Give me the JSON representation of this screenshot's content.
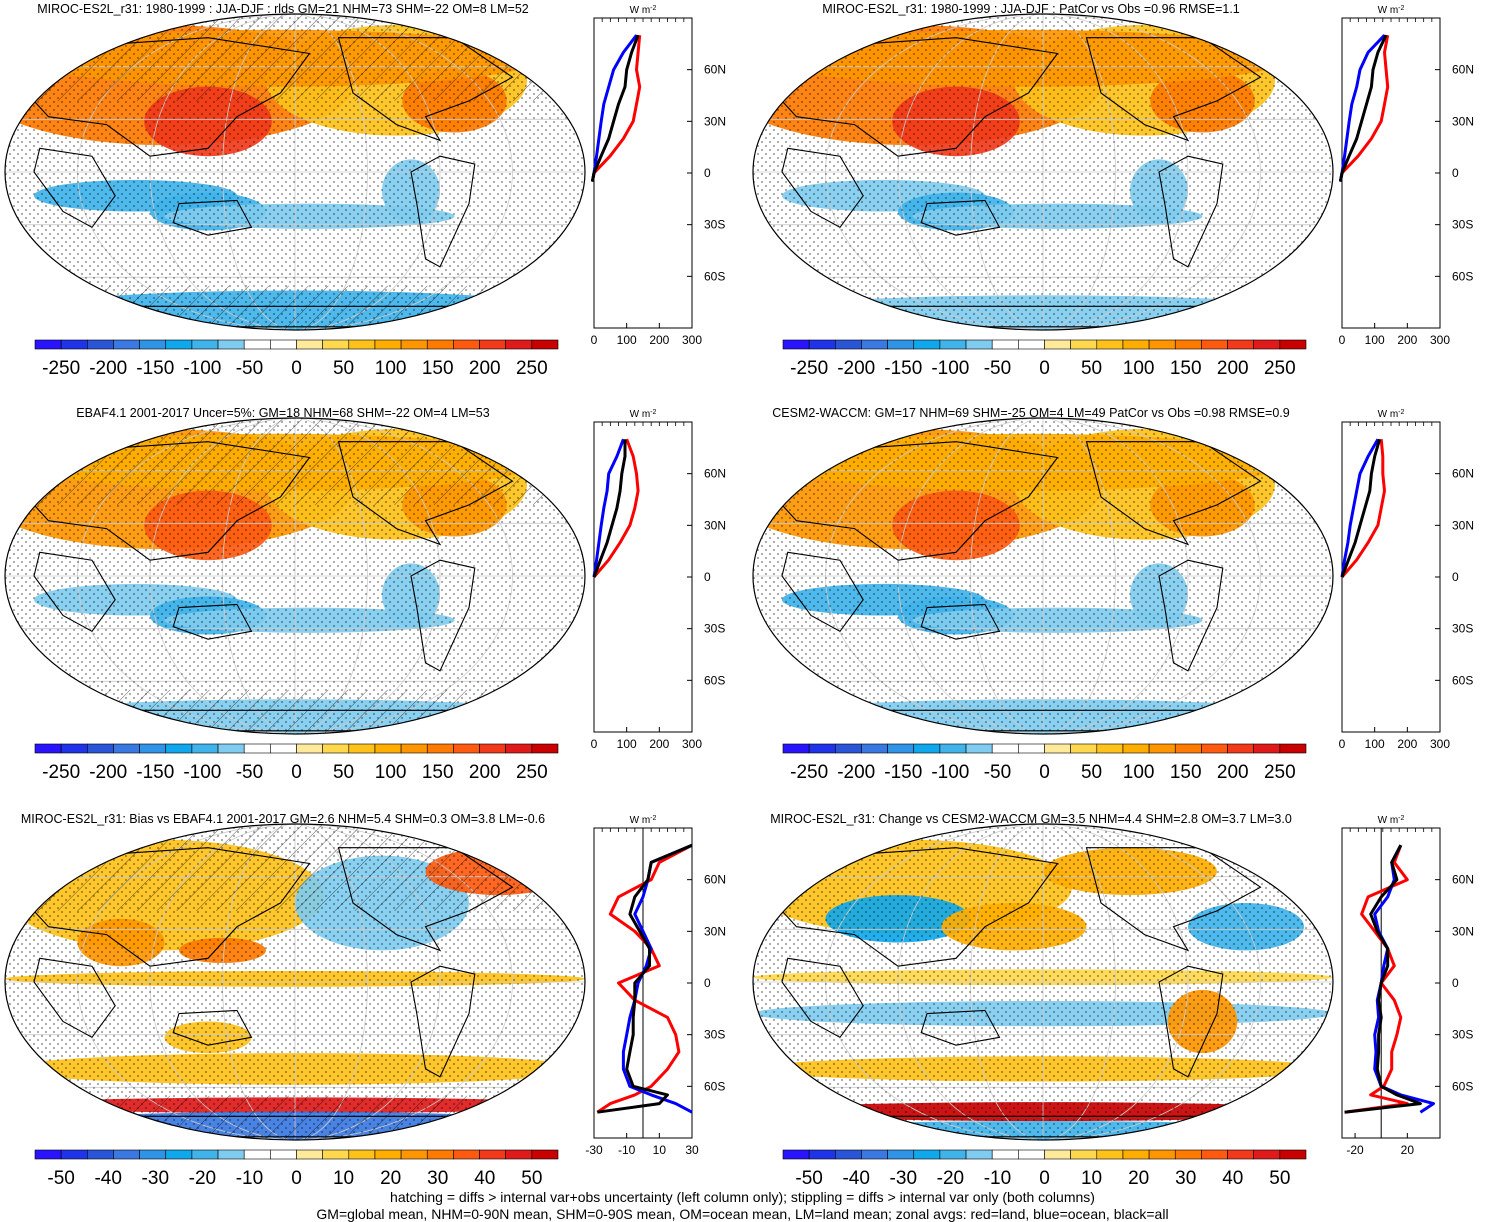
{
  "colors": {
    "scale": [
      "#2a14ff",
      "#1f33e8",
      "#2a55d6",
      "#3a78e2",
      "#2f93e6",
      "#10a8ec",
      "#3fb3ea",
      "#7fccf0",
      "#ffffff",
      "#ffffff",
      "#ffe99a",
      "#ffd84e",
      "#ffc21a",
      "#ffae00",
      "#ff9600",
      "#ff7a00",
      "#ff5a10",
      "#f23a1a",
      "#e01a1a",
      "#c80000"
    ],
    "land_line": "#ff0000",
    "ocean_line": "#0000ff",
    "all_line": "#000000"
  },
  "chart_data": [
    {
      "id": "p1",
      "type": "heatmap",
      "title": "MIROC-ES2L_r31: 1980-1999 : JJA-DJF : rlds GM=21 NHM=73 SHM=-22 OM=8 LM=52",
      "colorbar": {
        "ticks": [
          "-250",
          "-200",
          "-150",
          "-100",
          "-50",
          "0",
          "50",
          "100",
          "150",
          "200",
          "250"
        ],
        "range": [
          -275,
          275
        ]
      },
      "zonal": {
        "unit_main": "W m",
        "unit_sup": "-2",
        "xticks": [
          "0",
          "100",
          "200",
          "300"
        ],
        "xlim": [
          0,
          300
        ],
        "yticks": [
          "60N",
          "30N",
          "0",
          "30S",
          "60S"
        ],
        "ylim": [
          -90,
          90
        ],
        "zero_line": false,
        "lat": [
          80,
          70,
          60,
          50,
          40,
          30,
          20,
          10,
          0,
          -5
        ],
        "land": [
          140,
          135,
          130,
          140,
          130,
          120,
          90,
          50,
          0,
          -5
        ],
        "ocean": [
          130,
          90,
          60,
          45,
          30,
          22,
          15,
          8,
          0,
          -5
        ],
        "all": [
          135,
          115,
          100,
          95,
          75,
          60,
          45,
          22,
          0,
          -5
        ]
      },
      "map": {
        "blobs": [
          {
            "cx": -0.45,
            "cy": 0.55,
            "rx": 0.65,
            "ry": 0.38,
            "v": 150
          },
          {
            "cx": -0.3,
            "cy": 0.32,
            "rx": 0.22,
            "ry": 0.22,
            "v": 200
          },
          {
            "cx": 0.35,
            "cy": 0.58,
            "rx": 0.45,
            "ry": 0.35,
            "v": 80
          },
          {
            "cx": 0.55,
            "cy": 0.45,
            "rx": 0.18,
            "ry": 0.2,
            "v": 140
          },
          {
            "cx": -0.05,
            "cy": 0.72,
            "rx": 0.9,
            "ry": 0.18,
            "v": 110
          },
          {
            "cx": -0.55,
            "cy": -0.15,
            "rx": 0.35,
            "ry": 0.1,
            "v": -90
          },
          {
            "cx": -0.3,
            "cy": -0.25,
            "rx": 0.2,
            "ry": 0.12,
            "v": -100
          },
          {
            "cx": 0.05,
            "cy": -0.28,
            "rx": 0.5,
            "ry": 0.08,
            "v": -70
          },
          {
            "cx": 0.4,
            "cy": -0.12,
            "rx": 0.1,
            "ry": 0.2,
            "v": -70
          },
          {
            "cx": 0.0,
            "cy": -0.9,
            "rx": 1.0,
            "ry": 0.15,
            "v": -90
          }
        ]
      }
    },
    {
      "id": "p2",
      "type": "heatmap",
      "title": "MIROC-ES2L_r31: 1980-1999 : JJA-DJF : PatCor vs Obs =0.96 RMSE=1.1",
      "colorbar": {
        "ticks": [
          "-250",
          "-200",
          "-150",
          "-100",
          "-50",
          "0",
          "50",
          "100",
          "150",
          "200",
          "250"
        ],
        "range": [
          -275,
          275
        ]
      },
      "zonal": {
        "unit_main": "W m",
        "unit_sup": "-2",
        "xticks": [
          "0",
          "100",
          "200",
          "300"
        ],
        "xlim": [
          0,
          300
        ],
        "yticks": [
          "60N",
          "30N",
          "0",
          "30S",
          "60S"
        ],
        "ylim": [
          -90,
          90
        ],
        "zero_line": false,
        "lat": [
          80,
          70,
          60,
          50,
          40,
          30,
          20,
          10,
          0,
          -5
        ],
        "land": [
          140,
          130,
          135,
          140,
          130,
          120,
          90,
          50,
          0,
          -5
        ],
        "ocean": [
          130,
          80,
          55,
          45,
          30,
          22,
          15,
          8,
          0,
          -5
        ],
        "all": [
          135,
          110,
          95,
          90,
          75,
          60,
          45,
          22,
          0,
          -5
        ]
      },
      "map": {
        "blobs": [
          {
            "cx": -0.45,
            "cy": 0.55,
            "rx": 0.65,
            "ry": 0.38,
            "v": 150
          },
          {
            "cx": -0.3,
            "cy": 0.32,
            "rx": 0.22,
            "ry": 0.22,
            "v": 200
          },
          {
            "cx": 0.35,
            "cy": 0.58,
            "rx": 0.45,
            "ry": 0.35,
            "v": 80
          },
          {
            "cx": 0.55,
            "cy": 0.45,
            "rx": 0.18,
            "ry": 0.2,
            "v": 140
          },
          {
            "cx": -0.05,
            "cy": 0.72,
            "rx": 0.9,
            "ry": 0.18,
            "v": 110
          },
          {
            "cx": -0.55,
            "cy": -0.15,
            "rx": 0.35,
            "ry": 0.1,
            "v": -80
          },
          {
            "cx": -0.3,
            "cy": -0.25,
            "rx": 0.2,
            "ry": 0.12,
            "v": -90
          },
          {
            "cx": 0.05,
            "cy": -0.28,
            "rx": 0.5,
            "ry": 0.08,
            "v": -70
          },
          {
            "cx": 0.4,
            "cy": -0.12,
            "rx": 0.1,
            "ry": 0.2,
            "v": -70
          },
          {
            "cx": 0.0,
            "cy": -0.9,
            "rx": 1.0,
            "ry": 0.12,
            "v": -80
          }
        ]
      }
    },
    {
      "id": "p3",
      "type": "heatmap",
      "title": "EBAF4.1 2001-2017 Uncer=5%: GM=18 NHM=68 SHM=-22 OM=4 LM=53",
      "colorbar": {
        "ticks": [
          "-250",
          "-200",
          "-150",
          "-100",
          "-50",
          "0",
          "50",
          "100",
          "150",
          "200",
          "250"
        ],
        "range": [
          -275,
          275
        ]
      },
      "zonal": {
        "unit_main": "W m",
        "unit_sup": "-2",
        "xticks": [
          "0",
          "100",
          "200",
          "300"
        ],
        "xlim": [
          0,
          300
        ],
        "yticks": [
          "60N",
          "30N",
          "0",
          "30S",
          "60S"
        ],
        "ylim": [
          -90,
          90
        ],
        "zero_line": false,
        "lat": [
          80,
          70,
          60,
          50,
          40,
          30,
          20,
          10,
          0
        ],
        "land": [
          100,
          120,
          130,
          135,
          125,
          110,
          80,
          45,
          0
        ],
        "ocean": [
          90,
          70,
          45,
          40,
          30,
          22,
          15,
          8,
          0
        ],
        "all": [
          95,
          95,
          85,
          80,
          70,
          55,
          40,
          20,
          0
        ]
      },
      "map": {
        "blobs": [
          {
            "cx": -0.45,
            "cy": 0.55,
            "rx": 0.65,
            "ry": 0.38,
            "v": 130
          },
          {
            "cx": -0.3,
            "cy": 0.32,
            "rx": 0.22,
            "ry": 0.22,
            "v": 180
          },
          {
            "cx": 0.35,
            "cy": 0.58,
            "rx": 0.45,
            "ry": 0.35,
            "v": 80
          },
          {
            "cx": 0.55,
            "cy": 0.45,
            "rx": 0.18,
            "ry": 0.2,
            "v": 130
          },
          {
            "cx": -0.05,
            "cy": 0.72,
            "rx": 0.9,
            "ry": 0.18,
            "v": 100
          },
          {
            "cx": -0.55,
            "cy": -0.15,
            "rx": 0.35,
            "ry": 0.1,
            "v": -80
          },
          {
            "cx": -0.3,
            "cy": -0.25,
            "rx": 0.2,
            "ry": 0.12,
            "v": -100
          },
          {
            "cx": 0.05,
            "cy": -0.28,
            "rx": 0.5,
            "ry": 0.08,
            "v": -70
          },
          {
            "cx": 0.4,
            "cy": -0.12,
            "rx": 0.1,
            "ry": 0.2,
            "v": -70
          },
          {
            "cx": 0.0,
            "cy": -0.9,
            "rx": 1.0,
            "ry": 0.12,
            "v": -80
          }
        ]
      }
    },
    {
      "id": "p4",
      "type": "heatmap",
      "title": "CESM2-WACCM: GM=17 NHM=69 SHM=-25 OM=4 LM=49 PatCor vs Obs =0.98 RMSE=0.9",
      "colorbar": {
        "ticks": [
          "-250",
          "-200",
          "-150",
          "-100",
          "-50",
          "0",
          "50",
          "100",
          "150",
          "200",
          "250"
        ],
        "range": [
          -275,
          275
        ]
      },
      "zonal": {
        "unit_main": "W m",
        "unit_sup": "-2",
        "xticks": [
          "0",
          "100",
          "200",
          "300"
        ],
        "xlim": [
          0,
          300
        ],
        "yticks": [
          "60N",
          "30N",
          "0",
          "30S",
          "60S"
        ],
        "ylim": [
          -90,
          90
        ],
        "zero_line": false,
        "lat": [
          80,
          70,
          60,
          50,
          40,
          30,
          20,
          10,
          0
        ],
        "land": [
          120,
          125,
          125,
          130,
          120,
          110,
          80,
          45,
          0
        ],
        "ocean": [
          110,
          80,
          55,
          45,
          35,
          25,
          18,
          8,
          0
        ],
        "all": [
          115,
          100,
          90,
          85,
          70,
          55,
          40,
          20,
          0
        ]
      },
      "map": {
        "blobs": [
          {
            "cx": -0.45,
            "cy": 0.55,
            "rx": 0.65,
            "ry": 0.38,
            "v": 130
          },
          {
            "cx": -0.3,
            "cy": 0.32,
            "rx": 0.22,
            "ry": 0.22,
            "v": 170
          },
          {
            "cx": 0.35,
            "cy": 0.58,
            "rx": 0.45,
            "ry": 0.35,
            "v": 80
          },
          {
            "cx": 0.55,
            "cy": 0.45,
            "rx": 0.18,
            "ry": 0.2,
            "v": 130
          },
          {
            "cx": -0.05,
            "cy": 0.72,
            "rx": 0.9,
            "ry": 0.18,
            "v": 100
          },
          {
            "cx": -0.55,
            "cy": -0.15,
            "rx": 0.35,
            "ry": 0.1,
            "v": -90
          },
          {
            "cx": -0.3,
            "cy": -0.25,
            "rx": 0.2,
            "ry": 0.12,
            "v": -100
          },
          {
            "cx": 0.05,
            "cy": -0.28,
            "rx": 0.5,
            "ry": 0.08,
            "v": -80
          },
          {
            "cx": 0.4,
            "cy": -0.12,
            "rx": 0.1,
            "ry": 0.2,
            "v": -80
          },
          {
            "cx": 0.0,
            "cy": -0.9,
            "rx": 1.0,
            "ry": 0.12,
            "v": -80
          }
        ]
      }
    },
    {
      "id": "p5",
      "type": "heatmap",
      "title": "MIROC-ES2L_r31: Bias vs EBAF4.1 2001-2017 GM=2.6 NHM=5.4 SHM=0.3 OM=3.8 LM=-0.6",
      "colorbar": {
        "ticks": [
          "-50",
          "-40",
          "-30",
          "-20",
          "-10",
          "0",
          "10",
          "20",
          "30",
          "40",
          "50"
        ],
        "range": [
          -55,
          55
        ]
      },
      "zonal": {
        "unit_main": "W m",
        "unit_sup": "-2",
        "xticks": [
          "-30",
          "-10",
          "10",
          "30"
        ],
        "xlim": [
          -30,
          30
        ],
        "yticks": [
          "60N",
          "30N",
          "0",
          "30S",
          "60S"
        ],
        "ylim": [
          -90,
          90
        ],
        "zero_line": true,
        "lat": [
          80,
          70,
          60,
          50,
          40,
          30,
          20,
          10,
          0,
          -10,
          -20,
          -30,
          -40,
          -50,
          -60,
          -65,
          -70,
          -75
        ],
        "land": [
          30,
          10,
          5,
          -15,
          -20,
          -5,
          5,
          10,
          -15,
          -5,
          15,
          20,
          22,
          15,
          5,
          -5,
          -20,
          -28
        ],
        "ocean": [
          30,
          5,
          3,
          0,
          -5,
          0,
          5,
          2,
          -3,
          -5,
          -8,
          -10,
          -12,
          -12,
          -8,
          5,
          20,
          30
        ],
        "all": [
          30,
          5,
          3,
          -5,
          -8,
          -2,
          4,
          4,
          -5,
          -5,
          -6,
          -6,
          -8,
          -10,
          -6,
          15,
          10,
          -28
        ]
      },
      "map": {
        "blobs": [
          {
            "cx": -0.45,
            "cy": 0.55,
            "rx": 0.55,
            "ry": 0.35,
            "v": 15
          },
          {
            "cx": 0.3,
            "cy": 0.5,
            "rx": 0.3,
            "ry": 0.3,
            "v": -12
          },
          {
            "cx": 0.7,
            "cy": 0.7,
            "rx": 0.25,
            "ry": 0.15,
            "v": 35
          },
          {
            "cx": -0.6,
            "cy": 0.25,
            "rx": 0.15,
            "ry": 0.15,
            "v": 25
          },
          {
            "cx": -0.25,
            "cy": 0.2,
            "rx": 0.15,
            "ry": 0.08,
            "v": 30
          },
          {
            "cx": 0.0,
            "cy": 0.02,
            "rx": 1.0,
            "ry": 0.05,
            "v": 12
          },
          {
            "cx": 0.0,
            "cy": -0.2,
            "rx": 1.0,
            "ry": 0.08,
            "v": -10
          },
          {
            "cx": -0.3,
            "cy": -0.35,
            "rx": 0.15,
            "ry": 0.1,
            "v": 15
          },
          {
            "cx": 0.0,
            "cy": -0.55,
            "rx": 1.0,
            "ry": 0.1,
            "v": 12
          },
          {
            "cx": 0.0,
            "cy": -0.78,
            "rx": 1.0,
            "ry": 0.05,
            "v": 45
          },
          {
            "cx": 0.0,
            "cy": -0.92,
            "rx": 1.0,
            "ry": 0.1,
            "v": -35
          }
        ]
      }
    },
    {
      "id": "p6",
      "type": "heatmap",
      "title": "MIROC-ES2L_r31: Change vs CESM2-WACCM GM=3.5 NHM=4.4 SHM=2.8 OM=3.7 LM=3.0",
      "colorbar": {
        "ticks": [
          "-50",
          "-40",
          "-30",
          "-20",
          "-10",
          "0",
          "10",
          "20",
          "30",
          "40",
          "50"
        ],
        "range": [
          -55,
          55
        ]
      },
      "zonal": {
        "unit_main": "W m",
        "unit_sup": "-2",
        "xticks": [
          "-20",
          "20"
        ],
        "xlim": [
          -30,
          45
        ],
        "yticks": [
          "60N",
          "30N",
          "0",
          "30S",
          "60S"
        ],
        "ylim": [
          -90,
          90
        ],
        "zero_line": true,
        "lat": [
          80,
          70,
          60,
          50,
          40,
          30,
          20,
          10,
          0,
          -10,
          -20,
          -30,
          -40,
          -50,
          -60,
          -65,
          -70,
          -75
        ],
        "land": [
          15,
          10,
          20,
          -10,
          -15,
          -5,
          5,
          10,
          0,
          10,
          15,
          12,
          8,
          8,
          2,
          -8,
          20,
          -28
        ],
        "ocean": [
          15,
          8,
          10,
          5,
          -5,
          -2,
          5,
          2,
          0,
          -3,
          -2,
          -5,
          -4,
          -5,
          0,
          15,
          40,
          30
        ],
        "all": [
          15,
          8,
          12,
          0,
          -8,
          -3,
          5,
          5,
          0,
          -2,
          0,
          -2,
          -2,
          -3,
          0,
          12,
          30,
          -28
        ]
      },
      "map": {
        "blobs": [
          {
            "cx": -0.45,
            "cy": 0.6,
            "rx": 0.55,
            "ry": 0.3,
            "v": 15
          },
          {
            "cx": -0.5,
            "cy": 0.4,
            "rx": 0.25,
            "ry": 0.15,
            "v": -25
          },
          {
            "cx": -0.1,
            "cy": 0.35,
            "rx": 0.25,
            "ry": 0.15,
            "v": 20
          },
          {
            "cx": 0.3,
            "cy": 0.7,
            "rx": 0.3,
            "ry": 0.15,
            "v": 20
          },
          {
            "cx": 0.7,
            "cy": 0.35,
            "rx": 0.2,
            "ry": 0.15,
            "v": -20
          },
          {
            "cx": 0.0,
            "cy": 0.03,
            "rx": 1.0,
            "ry": 0.05,
            "v": 10
          },
          {
            "cx": 0.0,
            "cy": -0.2,
            "rx": 1.0,
            "ry": 0.08,
            "v": -12
          },
          {
            "cx": 0.55,
            "cy": -0.25,
            "rx": 0.12,
            "ry": 0.2,
            "v": 25
          },
          {
            "cx": 0.0,
            "cy": -0.55,
            "rx": 1.0,
            "ry": 0.08,
            "v": 12
          },
          {
            "cx": 0.0,
            "cy": -0.82,
            "rx": 1.0,
            "ry": 0.06,
            "v": 50
          },
          {
            "cx": 0.0,
            "cy": -0.94,
            "rx": 1.0,
            "ry": 0.06,
            "v": -20
          }
        ]
      }
    }
  ],
  "footnotes": [
    "hatching = diffs > internal var+obs uncertainty (left column only); stippling = diffs > internal var only (both columns)",
    "GM=global mean, NHM=0-90N mean, SHM=0-90S mean, OM=ocean mean, LM=land mean; zonal avgs: red=land, blue=ocean, black=all"
  ]
}
